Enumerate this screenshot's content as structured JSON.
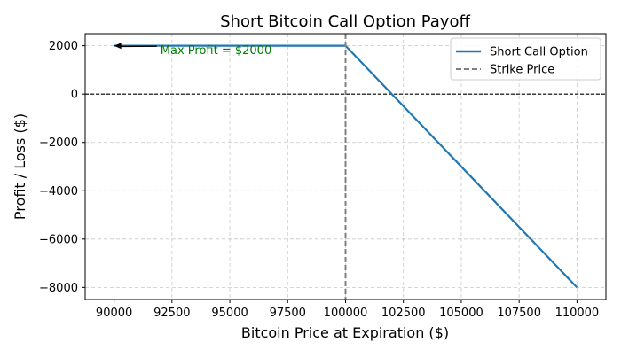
{
  "chart_data": {
    "type": "line",
    "title": "Short Bitcoin Call Option Payoff",
    "xlabel": "Bitcoin Price at Expiration ($)",
    "ylabel": "Profit / Loss ($)",
    "xlim": [
      88750,
      111250
    ],
    "ylim": [
      -8500,
      2500
    ],
    "x_ticks": [
      90000,
      92500,
      95000,
      97500,
      100000,
      102500,
      105000,
      107500,
      110000
    ],
    "y_ticks": [
      -8000,
      -6000,
      -4000,
      -2000,
      0,
      2000
    ],
    "grid": true,
    "legend_position": "top-right",
    "series": [
      {
        "name": "Short Call Option",
        "style": "solid",
        "color": "#1f77b4",
        "points": [
          {
            "x": 90000,
            "y": 2000
          },
          {
            "x": 100000,
            "y": 2000
          },
          {
            "x": 110000,
            "y": -8000
          }
        ]
      },
      {
        "name": "Strike Price",
        "style": "dashed",
        "color": "#808080",
        "vertical_at_x": 100000
      }
    ],
    "reference_lines": [
      {
        "axis": "y",
        "value": 0,
        "style": "dashed",
        "color": "#000000"
      }
    ],
    "annotations": [
      {
        "text": "Max Profit = $2000",
        "color": "#008000",
        "arrow_to": {
          "x": 90000,
          "y": 2000
        },
        "text_at": {
          "x": 92000,
          "y": 1650
        }
      }
    ]
  }
}
